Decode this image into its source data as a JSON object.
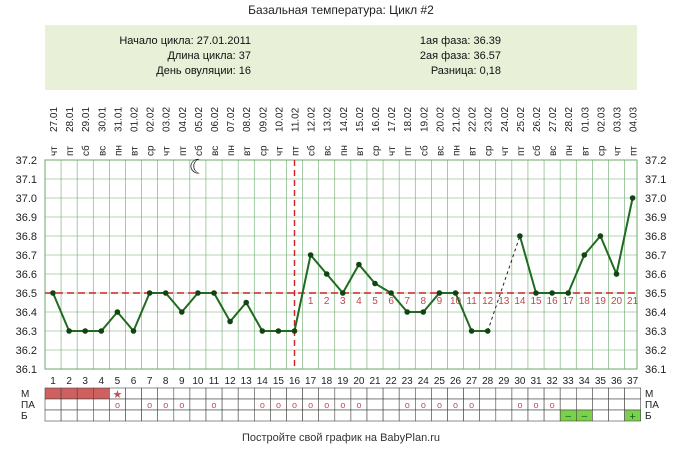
{
  "title": "Базальная температура: Цикл #2",
  "info": {
    "cycle_start": "Начало цикла: 27.01.2011",
    "cycle_length": "Длина цикла: 37",
    "ovulation_day": "День овуляции: 16",
    "phase1": "1ая фаза: 36.39",
    "phase2": "2ая фаза: 36.57",
    "difference": "Разница: 0,18"
  },
  "footer": "Постройте свой график на BabyPlan.ru",
  "colors": {
    "line": "#1f6b1f",
    "marker": "#124412",
    "coverline": "#cc2222",
    "ovulation": "#cc2222",
    "grid": "#6aa86a",
    "menses": "#d06060",
    "green_cell": "#7ad14a",
    "info_bg": "#e8f0d8"
  },
  "chart_data": {
    "type": "line",
    "title": "Базальная температура: Цикл #2",
    "x": [
      1,
      2,
      3,
      4,
      5,
      6,
      7,
      8,
      9,
      10,
      11,
      12,
      13,
      14,
      15,
      16,
      17,
      18,
      19,
      20,
      21,
      22,
      23,
      24,
      25,
      26,
      27,
      28,
      29,
      30,
      31,
      32,
      33,
      34,
      35,
      36,
      37
    ],
    "dates": [
      "27.01",
      "28.01",
      "29.01",
      "30.01",
      "31.01",
      "01.02",
      "02.02",
      "03.02",
      "04.02",
      "05.02",
      "06.02",
      "07.02",
      "08.02",
      "09.02",
      "10.02",
      "11.02",
      "12.02",
      "13.02",
      "14.02",
      "15.02",
      "16.02",
      "17.02",
      "18.02",
      "19.02",
      "20.02",
      "21.02",
      "22.02",
      "23.02",
      "24.02",
      "25.02",
      "26.02",
      "27.02",
      "28.02",
      "01.03",
      "02.03",
      "03.03",
      "04.03"
    ],
    "weekdays": [
      "чт",
      "пт",
      "сб",
      "вс",
      "пн",
      "вт",
      "ср",
      "чт",
      "пт",
      "сб",
      "вс",
      "пн",
      "вт",
      "ср",
      "чт",
      "пт",
      "сб",
      "вс",
      "пн",
      "вт",
      "ср",
      "чт",
      "пт",
      "сб",
      "вс",
      "пн",
      "вт",
      "ср",
      "чт",
      "пт",
      "сб",
      "вс",
      "пн",
      "вт",
      "ср",
      "чт",
      "пт"
    ],
    "series": [
      {
        "values": [
          36.5,
          36.3,
          36.3,
          36.3,
          36.4,
          36.3,
          36.5,
          36.5,
          36.4,
          36.5,
          36.5,
          36.35,
          36.45,
          36.3,
          36.3,
          36.3,
          36.7,
          36.6,
          36.5,
          36.65,
          36.55,
          36.5,
          36.4,
          36.4,
          36.5,
          36.5,
          36.3,
          36.3,
          null,
          36.8,
          36.5,
          36.5,
          36.5,
          36.7,
          36.8,
          36.6,
          37.0
        ]
      }
    ],
    "dashed_gap": [
      28,
      30
    ],
    "coverline": 36.5,
    "ovulation_day": 16,
    "luteal_day_labels": [
      "1",
      "2",
      "3",
      "4",
      "5",
      "6",
      "7",
      "8",
      "9",
      "10",
      "11",
      "12",
      "13",
      "14",
      "15",
      "16",
      "17",
      "18",
      "19",
      "20",
      "21"
    ],
    "ylim": [
      36.1,
      37.2
    ],
    "yticks": [
      "37.2",
      "37.1",
      "37.0",
      "36.9",
      "36.8",
      "36.7",
      "36.6",
      "36.5",
      "36.4",
      "36.3",
      "36.2",
      "36.1"
    ],
    "moon_day": 10,
    "moon_symbol": "☾",
    "grid": true
  },
  "rows": {
    "labels": [
      "М",
      "ПА",
      "Б"
    ],
    "menses_days": [
      1,
      2,
      3,
      4
    ],
    "star_day": 5,
    "star_symbol": "★",
    "intercourse_days": [
      5,
      7,
      8,
      9,
      11,
      14,
      15,
      16,
      17,
      18,
      19,
      20,
      23,
      24,
      25,
      26,
      27,
      30,
      31,
      32
    ],
    "intercourse_symbol": "o",
    "b_minus_days": [
      33,
      34
    ],
    "b_minus_symbol": "–",
    "b_plus_days": [
      37
    ],
    "b_plus_symbol": "+"
  }
}
